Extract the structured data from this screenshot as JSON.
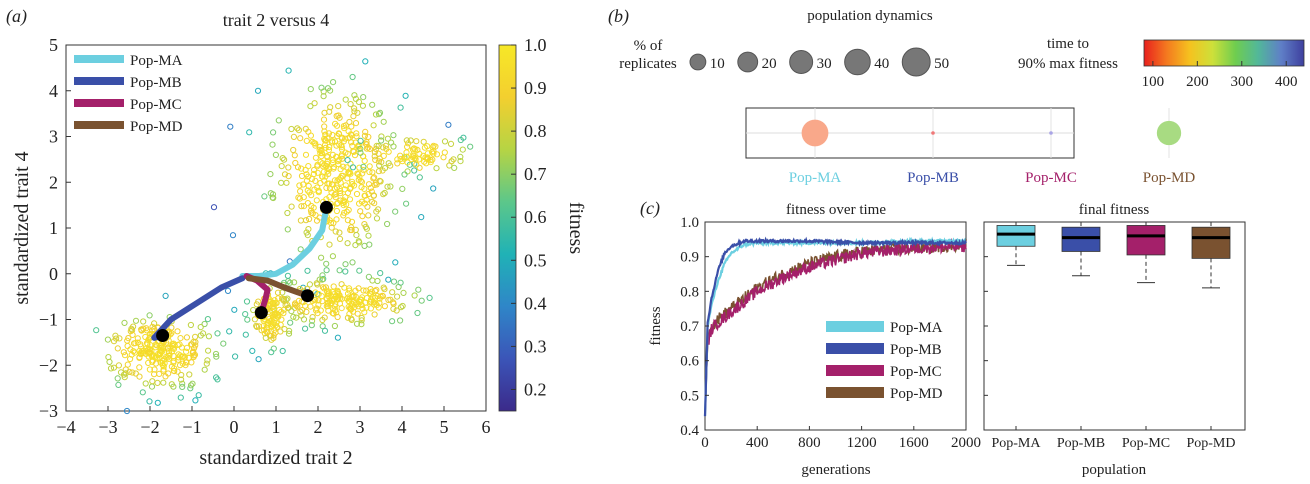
{
  "panel_labels": {
    "a": "(a)",
    "b": "(b)",
    "c": "(c)"
  },
  "colors": {
    "Pop-MA": "#6ccfe0",
    "Pop-MB": "#3a4fa8",
    "Pop-MC": "#a4206a",
    "Pop-MD": "#7a5230"
  },
  "chart_data": [
    {
      "id": "scatter",
      "type": "scatter",
      "title": "trait 2 versus 4",
      "xlabel": "standardized trait 2",
      "ylabel": "standardized trait 4",
      "xlim": [
        -4,
        6
      ],
      "ylim": [
        -3,
        5
      ],
      "xticks": [
        -4,
        -3,
        -2,
        -1,
        0,
        1,
        2,
        3,
        4,
        5,
        6
      ],
      "yticks": [
        -3,
        -2,
        -1,
        0,
        1,
        2,
        3,
        4,
        5
      ],
      "grid": false,
      "legend_position": "top-left",
      "series": [
        {
          "name": "Pop-MA",
          "trajectory": [
            [
              0.2,
              -0.05
            ],
            [
              0.6,
              -0.05
            ],
            [
              1.0,
              0.0
            ],
            [
              1.4,
              0.2
            ],
            [
              1.8,
              0.55
            ],
            [
              2.1,
              0.95
            ],
            [
              2.2,
              1.45
            ]
          ],
          "end": [
            2.2,
            1.45
          ]
        },
        {
          "name": "Pop-MB",
          "trajectory": [
            [
              0.2,
              -0.1
            ],
            [
              -0.3,
              -0.3
            ],
            [
              -0.9,
              -0.65
            ],
            [
              -1.5,
              -1.0
            ],
            [
              -1.9,
              -1.4
            ],
            [
              -1.7,
              -1.35
            ]
          ],
          "end": [
            -1.7,
            -1.35
          ]
        },
        {
          "name": "Pop-MC",
          "trajectory": [
            [
              0.3,
              -0.05
            ],
            [
              0.55,
              -0.15
            ],
            [
              0.8,
              -0.35
            ],
            [
              0.75,
              -0.55
            ],
            [
              0.65,
              -0.85
            ]
          ],
          "end": [
            0.65,
            -0.85
          ]
        },
        {
          "name": "Pop-MD",
          "trajectory": [
            [
              0.35,
              -0.1
            ],
            [
              0.8,
              -0.15
            ],
            [
              1.2,
              -0.3
            ],
            [
              1.5,
              -0.4
            ],
            [
              1.75,
              -0.48
            ]
          ],
          "end": [
            1.75,
            -0.48
          ]
        }
      ],
      "clouds": [
        {
          "center": [
            2.4,
            2.2
          ],
          "spread": [
            1.3,
            1.6
          ],
          "n": 420
        },
        {
          "center": [
            -1.8,
            -1.7
          ],
          "spread": [
            1.2,
            0.7
          ],
          "n": 260
        },
        {
          "center": [
            2.6,
            -0.6
          ],
          "spread": [
            1.5,
            0.45
          ],
          "n": 220
        },
        {
          "center": [
            0.9,
            -0.9
          ],
          "spread": [
            0.45,
            0.6
          ],
          "n": 120
        },
        {
          "center": [
            4.3,
            2.6
          ],
          "spread": [
            1.1,
            0.35
          ],
          "n": 90
        }
      ],
      "colorbar": {
        "label": "fitness",
        "range": [
          0.15,
          1.0
        ],
        "ticks": [
          "1.0",
          "0.9",
          "0.8",
          "0.7",
          "0.6",
          "0.5",
          "0.4",
          "0.3",
          "0.2"
        ],
        "tick_values": [
          1.0,
          0.9,
          0.8,
          0.7,
          0.6,
          0.5,
          0.4,
          0.3,
          0.2
        ],
        "colormap": [
          "#3b2a8a",
          "#3b55b8",
          "#2f86c8",
          "#20b2b6",
          "#5cc78a",
          "#b6d444",
          "#f3cf2f",
          "#f7e827"
        ]
      }
    },
    {
      "id": "population_dynamics",
      "type": "bubble",
      "title": "population dynamics",
      "size_legend_label": "% of replicates",
      "size_legend_values": [
        10,
        20,
        30,
        40,
        50
      ],
      "time_legend_label": "time to 90% max fitness",
      "time_ticks": [
        100,
        200,
        300,
        400
      ],
      "time_range": [
        80,
        440
      ],
      "time_colormap": [
        "#e8201e",
        "#f47a1f",
        "#f5c21f",
        "#cde03a",
        "#6fcd4f",
        "#52b79a",
        "#5f7fc7",
        "#3e3f9e"
      ],
      "categories": [
        "Pop-MA",
        "Pop-MB",
        "Pop-MC",
        "Pop-MD"
      ],
      "percent": [
        45,
        1,
        1,
        35
      ],
      "bubble_colors": [
        "#f9a88a",
        "#f07878",
        "#a9a4e6",
        "#a8db82"
      ]
    },
    {
      "id": "fitness_over_time",
      "type": "line",
      "title": "fitness over time",
      "xlabel": "generations",
      "ylabel": "fitness",
      "xlim": [
        0,
        2000
      ],
      "ylim": [
        0.4,
        1.0
      ],
      "xticks": [
        0,
        400,
        800,
        1200,
        1600,
        2000
      ],
      "yticks": [
        0.4,
        0.5,
        0.6,
        0.7,
        0.8,
        0.9,
        1.0
      ],
      "legend_position": "bottom-right",
      "series": [
        {
          "name": "Pop-MA",
          "x": [
            0,
            20,
            50,
            100,
            150,
            200,
            300,
            400,
            600,
            800,
            1200,
            1600,
            2000
          ],
          "y": [
            0.44,
            0.7,
            0.76,
            0.83,
            0.88,
            0.91,
            0.935,
            0.94,
            0.94,
            0.94,
            0.94,
            0.945,
            0.945
          ]
        },
        {
          "name": "Pop-MB",
          "x": [
            0,
            20,
            50,
            100,
            150,
            200,
            300,
            400,
            600,
            800,
            1200,
            1600,
            2000
          ],
          "y": [
            0.44,
            0.71,
            0.78,
            0.86,
            0.91,
            0.93,
            0.945,
            0.945,
            0.945,
            0.945,
            0.94,
            0.94,
            0.94
          ]
        },
        {
          "name": "Pop-MC",
          "x": [
            0,
            20,
            50,
            100,
            200,
            300,
            400,
            600,
            800,
            1000,
            1200,
            1600,
            2000
          ],
          "y": [
            0.44,
            0.65,
            0.69,
            0.71,
            0.74,
            0.77,
            0.8,
            0.84,
            0.87,
            0.89,
            0.91,
            0.925,
            0.93
          ]
        },
        {
          "name": "Pop-MD",
          "x": [
            0,
            20,
            50,
            100,
            200,
            300,
            400,
            600,
            800,
            1000,
            1200,
            1600,
            2000
          ],
          "y": [
            0.44,
            0.66,
            0.7,
            0.72,
            0.75,
            0.78,
            0.81,
            0.85,
            0.88,
            0.9,
            0.915,
            0.925,
            0.935
          ]
        }
      ]
    },
    {
      "id": "final_fitness",
      "type": "box",
      "title": "final fitness",
      "xlabel": "population",
      "ylim": [
        0.4,
        1.0
      ],
      "categories": [
        "Pop-MA",
        "Pop-MB",
        "Pop-MC",
        "Pop-MD"
      ],
      "boxes": [
        {
          "min": 0.875,
          "q1": 0.93,
          "median": 0.965,
          "q3": 0.99,
          "max": 1.0
        },
        {
          "min": 0.845,
          "q1": 0.915,
          "median": 0.955,
          "q3": 0.985,
          "max": 1.0
        },
        {
          "min": 0.825,
          "q1": 0.905,
          "median": 0.96,
          "q3": 0.99,
          "max": 1.0
        },
        {
          "min": 0.81,
          "q1": 0.895,
          "median": 0.955,
          "q3": 0.985,
          "max": 1.0
        }
      ]
    }
  ]
}
